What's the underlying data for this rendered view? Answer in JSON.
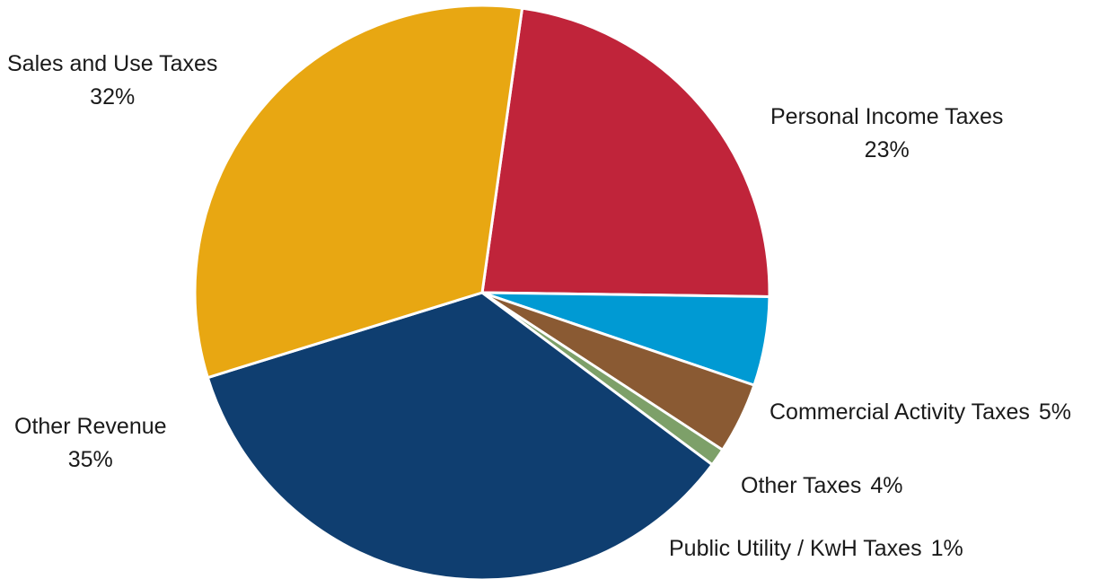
{
  "chart_data": {
    "type": "pie",
    "start_angle_deg": 8,
    "direction": "clockwise",
    "slices": [
      {
        "label": "Personal Income Taxes",
        "value": 23,
        "pct_text": "23%",
        "color": "#C0243A"
      },
      {
        "label": "Commercial Activity Taxes",
        "value": 5,
        "pct_text": "5%",
        "color": "#009AD3"
      },
      {
        "label": "Other Taxes",
        "value": 4,
        "pct_text": "4%",
        "color": "#8A5A33"
      },
      {
        "label": "Public Utility / KwH Taxes",
        "value": 1,
        "pct_text": "1%",
        "color": "#7DA069"
      },
      {
        "label": "Other Revenue",
        "value": 35,
        "pct_text": "35%",
        "color": "#0F3E70"
      },
      {
        "label": "Sales and Use Taxes",
        "value": 32,
        "pct_text": "32%",
        "color": "#E8A712"
      }
    ],
    "slice_border_color": "#FFFFFF"
  }
}
